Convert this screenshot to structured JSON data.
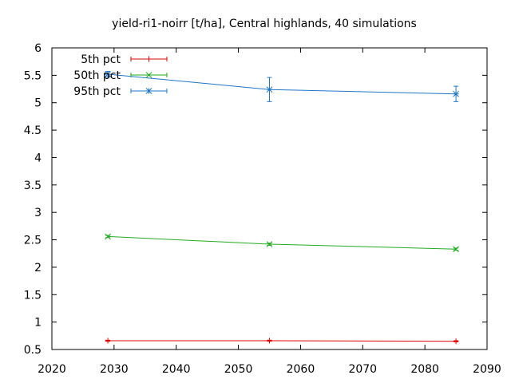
{
  "chart_data": {
    "type": "line",
    "title": "yield-ri1-noirr [t/ha], Central highlands, 40 simulations",
    "xlabel": "",
    "ylabel": "",
    "xlim": [
      2020,
      2090
    ],
    "ylim": [
      0.5,
      6
    ],
    "xticks": [
      "2020",
      "2030",
      "2040",
      "2050",
      "2060",
      "2070",
      "2080",
      "2090"
    ],
    "yticks": [
      "0.5",
      "1",
      "1.5",
      "2",
      "2.5",
      "3",
      "3.5",
      "4",
      "4.5",
      "5",
      "5.5",
      "6"
    ],
    "grid": false,
    "legend_position": "top-left",
    "x": [
      2029,
      2055,
      2085
    ],
    "series": [
      {
        "name": "5th pct",
        "color": "#dd0000",
        "marker": "plus",
        "values": [
          0.66,
          0.66,
          0.65
        ],
        "err": [
          0.01,
          0.01,
          0.01
        ]
      },
      {
        "name": "50th pct",
        "color": "#22aa22",
        "marker": "cross",
        "values": [
          2.56,
          2.42,
          2.33
        ],
        "err": [
          0.02,
          0.02,
          0.02
        ]
      },
      {
        "name": "95th pct",
        "color": "#1f77c4",
        "marker": "star",
        "values": [
          5.52,
          5.24,
          5.16
        ],
        "err": [
          0.05,
          0.22,
          0.14
        ]
      }
    ]
  }
}
